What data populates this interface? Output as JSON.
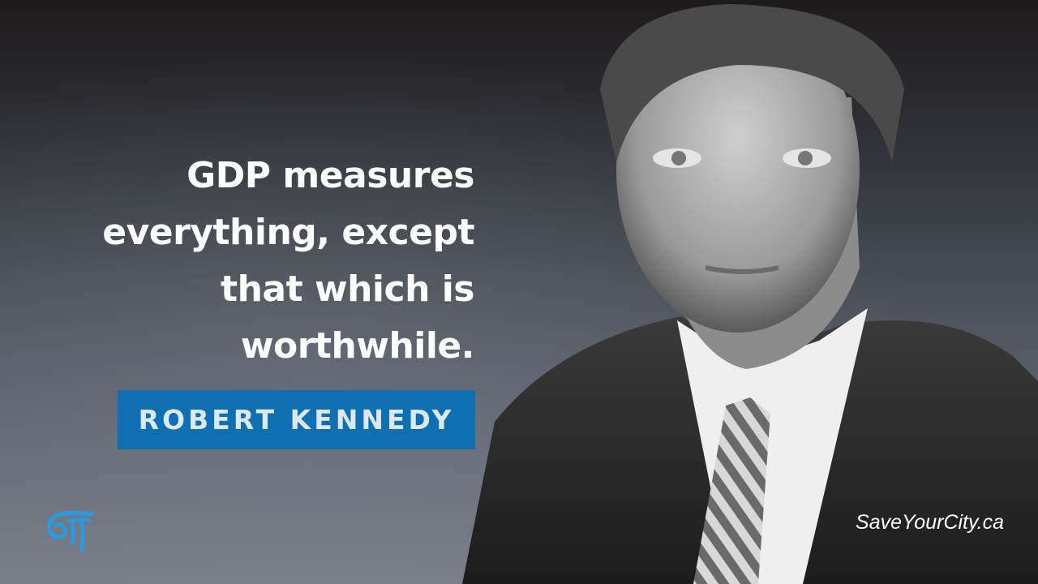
{
  "quote": {
    "lines": [
      "GDP measures",
      "everything, except",
      "that which is",
      "worthwhile."
    ]
  },
  "attribution": {
    "name": "ROBERT KENNEDY",
    "box_color": "#0f6fb0"
  },
  "brand": {
    "logo_icon": "spiral-pillar-logo-icon",
    "logo_color": "#2a9be0",
    "website": "SaveYourCity.ca"
  },
  "photo": {
    "subject": "portrait-photo",
    "style": "black-and-white"
  }
}
